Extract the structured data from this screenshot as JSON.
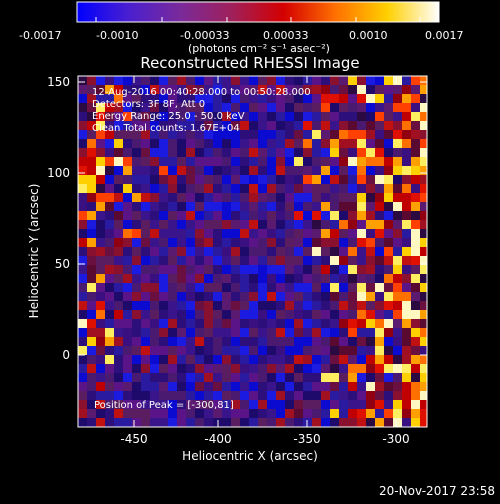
{
  "colorbar": {
    "tick_labels": [
      "-0.0017",
      "-0.0010",
      "-0.00033",
      "0.00033",
      "0.0010",
      "0.0017"
    ],
    "units_label": "(photons cm⁻² s⁻¹ asec⁻²)",
    "colors": [
      "#0000ff",
      "#4a1fd0",
      "#7a2a9a",
      "#a0205a",
      "#d40000",
      "#ff7000",
      "#ffd000",
      "#ffffff"
    ]
  },
  "image": {
    "title": "Reconstructed RHESSI Image",
    "annotations": [
      "12-Aug-2016 00:40:28.000 to 00:50:28.000",
      "Detectors: 3F 8F, Att 0",
      "Energy Range: 25.0 - 50.0 keV",
      "Clean    Total counts: 1.67E+04"
    ],
    "peak_label": "Position of Peak = [-300,81]",
    "x_axis": {
      "label": "Heliocentric X (arcsec)",
      "ticks": [
        "-450",
        "-400",
        "-350",
        "-300"
      ],
      "range": [
        -480,
        -288
      ]
    },
    "y_axis": {
      "label": "Heliocentric Y (arcsec)",
      "ticks": [
        "0",
        "50",
        "100",
        "150"
      ],
      "range": [
        -43,
        155
      ]
    }
  },
  "footer": {
    "timestamp": "20-Nov-2017 23:58"
  }
}
